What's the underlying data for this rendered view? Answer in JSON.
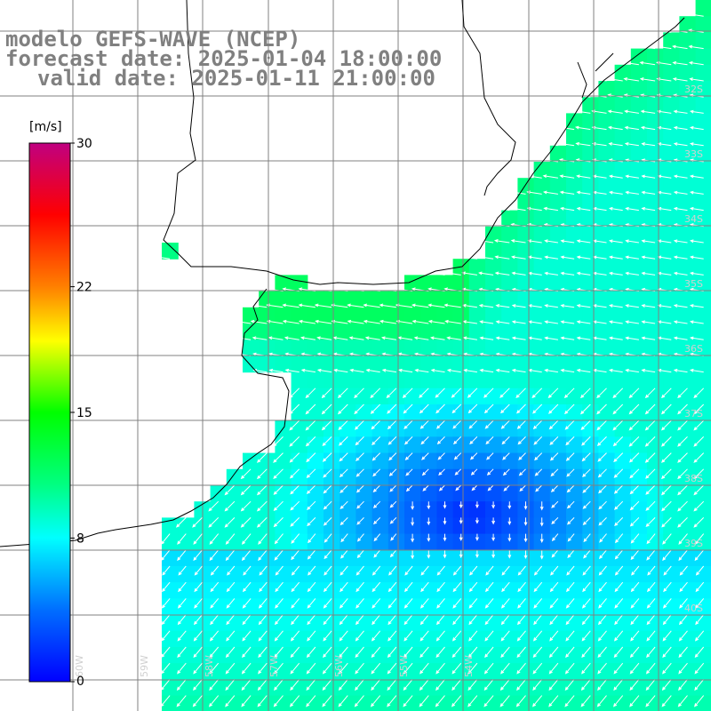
{
  "title": {
    "model": "modelo GEFS-WAVE (NCEP)",
    "forecast": "forecast date: 2025-01-04 18:00:00",
    "valid": "valid date: 2025-01-11 21:00:00"
  },
  "colorbar": {
    "unit": "[m/s]",
    "ticks": [
      {
        "label": "0",
        "value": 0
      },
      {
        "label": "8",
        "value": 8
      },
      {
        "label": "15",
        "value": 15
      },
      {
        "label": "22",
        "value": 22
      },
      {
        "label": "30",
        "value": 30
      }
    ],
    "range": [
      0,
      30
    ],
    "colors": [
      "#0000ff",
      "#00a0ff",
      "#00ffff",
      "#00ff00",
      "#ffff00",
      "#ff8000",
      "#ff0000",
      "#c00080"
    ]
  },
  "lat_labels": [
    "32S",
    "33S",
    "34S",
    "35S",
    "36S",
    "37S",
    "38S",
    "39S",
    "40S"
  ],
  "lon_labels": [
    "60W",
    "59W",
    "58W",
    "57W",
    "56W",
    "55W",
    "54W"
  ],
  "colors": {
    "land": "#ffffff",
    "coast": "#000000",
    "grid": "#808080",
    "arrow": "#ffffff"
  }
}
